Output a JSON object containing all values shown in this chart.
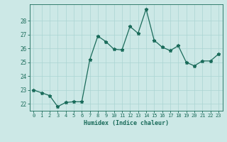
{
  "x": [
    0,
    1,
    2,
    3,
    4,
    5,
    6,
    7,
    8,
    9,
    10,
    11,
    12,
    13,
    14,
    15,
    16,
    17,
    18,
    19,
    20,
    21,
    22,
    23
  ],
  "y": [
    23.0,
    22.8,
    22.6,
    21.8,
    22.1,
    22.15,
    22.15,
    25.2,
    26.9,
    26.5,
    25.95,
    25.9,
    27.6,
    27.1,
    28.85,
    26.6,
    26.1,
    25.85,
    26.2,
    25.0,
    24.75,
    25.1,
    25.1,
    25.6
  ],
  "xlabel": "Humidex (Indice chaleur)",
  "xlim": [
    -0.5,
    23.5
  ],
  "ylim": [
    21.5,
    29.2
  ],
  "yticks": [
    22,
    23,
    24,
    25,
    26,
    27,
    28
  ],
  "xticks": [
    0,
    1,
    2,
    3,
    4,
    5,
    6,
    7,
    8,
    9,
    10,
    11,
    12,
    13,
    14,
    15,
    16,
    17,
    18,
    19,
    20,
    21,
    22,
    23
  ],
  "line_color": "#1a6b5a",
  "marker": "*",
  "bg_color": "#cce8e6",
  "grid_color": "#aad4d2",
  "tick_color": "#1a6b5a",
  "label_color": "#1a6b5a"
}
